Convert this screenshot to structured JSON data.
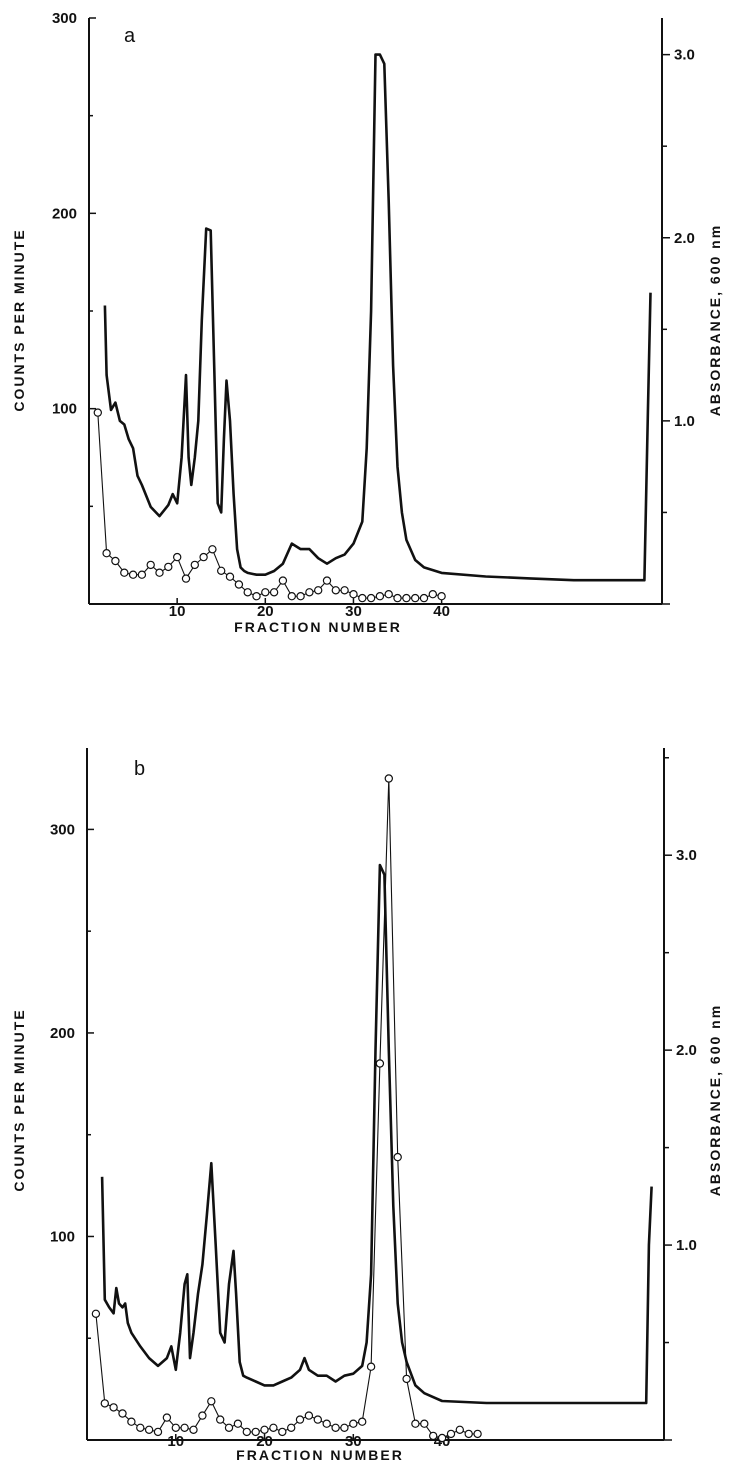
{
  "chart_data": [
    {
      "type": "line",
      "panel_label": "a",
      "xlabel": "FRACTION NUMBER",
      "ylabel_left": "COUNTS PER MINUTE",
      "ylabel_right": "ABSORBANCE, 600 nm",
      "x_ticks": [
        "10",
        "20",
        "30",
        "40"
      ],
      "y_left_ticks": [
        "100",
        "200",
        "300"
      ],
      "y_right_ticks": [
        "1.0",
        "2.0",
        "3.0"
      ],
      "xlim": [
        0,
        65
      ],
      "y_left_lim": [
        0,
        300
      ],
      "y_right_lim": [
        0,
        3.2
      ],
      "grid": false,
      "legend": "none",
      "series": [
        {
          "role": "counts",
          "axis": "left",
          "marker": "open-circle",
          "x": [
            1,
            2,
            3,
            4,
            5,
            6,
            7,
            8,
            9,
            10,
            11,
            12,
            13,
            14,
            15,
            16,
            17,
            18,
            19,
            20,
            21,
            22,
            23,
            24,
            25,
            26,
            27,
            28,
            29,
            30,
            31,
            32,
            33,
            34,
            35,
            36,
            37,
            38,
            39,
            40
          ],
          "y": [
            98,
            26,
            22,
            16,
            15,
            15,
            20,
            16,
            19,
            24,
            13,
            20,
            24,
            28,
            17,
            14,
            10,
            6,
            4,
            6,
            6,
            12,
            4,
            4,
            6,
            7,
            12,
            7,
            7,
            5,
            3,
            3,
            4,
            5,
            3,
            3,
            3,
            3,
            5,
            4
          ]
        },
        {
          "role": "absorbance",
          "axis": "right",
          "marker": "none",
          "x": [
            1.8,
            2,
            2.5,
            3,
            3.5,
            4,
            4.5,
            5,
            5.5,
            6,
            7,
            8,
            9,
            9.5,
            10,
            10.5,
            11,
            11.3,
            11.6,
            12,
            12.4,
            12.8,
            13.3,
            13.8,
            14.2,
            14.6,
            15,
            15.3,
            15.6,
            16,
            16.4,
            16.8,
            17.2,
            17.6,
            18,
            19,
            20,
            21,
            22,
            23,
            24,
            25,
            26,
            27,
            28,
            29,
            30,
            31,
            31.5,
            32,
            32.5,
            33,
            33.5,
            34,
            34.5,
            35,
            35.5,
            36,
            37,
            38,
            40,
            45,
            50,
            55,
            60,
            63,
            63.4,
            63.7
          ],
          "y": [
            1.63,
            1.25,
            1.06,
            1.1,
            1.0,
            0.98,
            0.9,
            0.85,
            0.7,
            0.65,
            0.53,
            0.48,
            0.54,
            0.6,
            0.55,
            0.8,
            1.25,
            0.8,
            0.65,
            0.8,
            1.0,
            1.55,
            2.05,
            2.04,
            1.3,
            0.55,
            0.5,
            0.9,
            1.22,
            1.0,
            0.6,
            0.3,
            0.2,
            0.18,
            0.17,
            0.16,
            0.16,
            0.18,
            0.22,
            0.33,
            0.3,
            0.3,
            0.25,
            0.22,
            0.25,
            0.27,
            0.33,
            0.45,
            0.85,
            1.6,
            3.0,
            3.0,
            2.95,
            2.2,
            1.3,
            0.75,
            0.5,
            0.35,
            0.24,
            0.2,
            0.17,
            0.15,
            0.14,
            0.13,
            0.13,
            0.13,
            1.05,
            1.7
          ]
        }
      ]
    },
    {
      "type": "line",
      "panel_label": "b",
      "xlabel": "FRACTION NUMBER",
      "ylabel_left": "COUNTS PER MINUTE",
      "ylabel_right": "ABSORBANCE, 600 nm",
      "x_ticks": [
        "10",
        "20",
        "30",
        "40"
      ],
      "y_left_ticks": [
        "100",
        "200",
        "300"
      ],
      "y_right_ticks": [
        "1.0",
        "2.0",
        "3.0"
      ],
      "xlim": [
        0,
        65
      ],
      "y_left_lim": [
        0,
        340
      ],
      "y_right_lim": [
        0,
        3.55
      ],
      "grid": false,
      "legend": "none",
      "series": [
        {
          "role": "counts",
          "axis": "left",
          "marker": "open-circle",
          "x": [
            1,
            2,
            3,
            4,
            5,
            6,
            7,
            8,
            9,
            10,
            11,
            12,
            13,
            14,
            15,
            16,
            17,
            18,
            19,
            20,
            21,
            22,
            23,
            24,
            25,
            26,
            27,
            28,
            29,
            30,
            31,
            32,
            33,
            34,
            35,
            36,
            37,
            38,
            39,
            40,
            41,
            42,
            43,
            44
          ],
          "y": [
            62,
            18,
            16,
            13,
            9,
            6,
            5,
            4,
            11,
            6,
            6,
            5,
            12,
            19,
            10,
            6,
            8,
            4,
            4,
            5,
            6,
            4,
            6,
            10,
            12,
            10,
            8,
            6,
            6,
            8,
            9,
            36,
            185,
            325,
            139,
            30,
            8,
            8,
            2,
            1,
            3,
            5,
            3,
            3
          ]
        },
        {
          "role": "absorbance",
          "axis": "right",
          "marker": "none",
          "x": [
            1.7,
            2,
            2.5,
            3,
            3.3,
            3.6,
            4,
            4.3,
            4.6,
            5,
            6,
            7,
            8,
            9,
            9.5,
            10,
            10.5,
            11,
            11.3,
            11.6,
            12,
            12.5,
            13,
            13.5,
            14,
            14.5,
            15,
            15.5,
            16,
            16.5,
            16.8,
            17.2,
            17.6,
            18,
            19,
            20,
            21,
            22,
            23,
            24,
            24.5,
            25,
            26,
            27,
            28,
            29,
            30,
            31,
            31.5,
            32,
            32.5,
            33,
            33.5,
            34,
            34.5,
            35,
            35.5,
            36,
            37,
            38,
            40,
            45,
            50,
            55,
            60,
            63,
            63.3,
            63.6
          ],
          "y": [
            1.35,
            0.72,
            0.68,
            0.65,
            0.78,
            0.7,
            0.68,
            0.7,
            0.6,
            0.55,
            0.48,
            0.42,
            0.38,
            0.42,
            0.48,
            0.36,
            0.55,
            0.8,
            0.85,
            0.42,
            0.55,
            0.75,
            0.9,
            1.15,
            1.42,
            1.0,
            0.55,
            0.5,
            0.8,
            0.97,
            0.75,
            0.4,
            0.33,
            0.32,
            0.3,
            0.28,
            0.28,
            0.3,
            0.32,
            0.36,
            0.42,
            0.36,
            0.33,
            0.33,
            0.3,
            0.33,
            0.34,
            0.38,
            0.5,
            0.85,
            2.0,
            2.95,
            2.9,
            2.0,
            1.2,
            0.7,
            0.5,
            0.4,
            0.28,
            0.24,
            0.2,
            0.19,
            0.19,
            0.19,
            0.19,
            0.19,
            1.0,
            1.3
          ]
        }
      ]
    }
  ]
}
